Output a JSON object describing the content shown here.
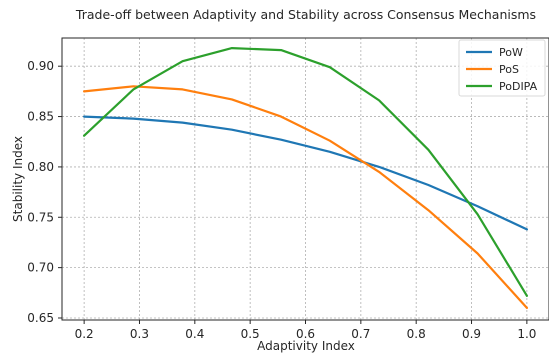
{
  "chart_data": {
    "type": "line",
    "title": "Trade-off between Adaptivity and Stability across Consensus Mechanisms",
    "xlabel": "Adaptivity Index",
    "ylabel": "Stability Index",
    "xlim": [
      0.16,
      1.04
    ],
    "ylim": [
      0.648,
      0.928
    ],
    "x_ticks": [
      "0.2",
      "0.3",
      "0.4",
      "0.5",
      "0.6",
      "0.7",
      "0.8",
      "0.9",
      "1.0"
    ],
    "y_ticks": [
      "0.65",
      "0.70",
      "0.75",
      "0.80",
      "0.85",
      "0.90"
    ],
    "grid": true,
    "legend_position": "top-right",
    "x": [
      0.2,
      0.289,
      0.378,
      0.467,
      0.556,
      0.644,
      0.733,
      0.822,
      0.911,
      1.0
    ],
    "series": [
      {
        "name": "PoW",
        "color": "#1f77b4",
        "values": [
          0.85,
          0.848,
          0.844,
          0.837,
          0.827,
          0.815,
          0.8,
          0.782,
          0.761,
          0.738
        ]
      },
      {
        "name": "PoS",
        "color": "#ff7f0e",
        "values": [
          0.875,
          0.88,
          0.877,
          0.867,
          0.85,
          0.826,
          0.795,
          0.757,
          0.714,
          0.66
        ]
      },
      {
        "name": "PoDIPA",
        "color": "#2ca02c",
        "values": [
          0.831,
          0.877,
          0.905,
          0.918,
          0.916,
          0.899,
          0.866,
          0.817,
          0.753,
          0.672
        ]
      }
    ]
  }
}
